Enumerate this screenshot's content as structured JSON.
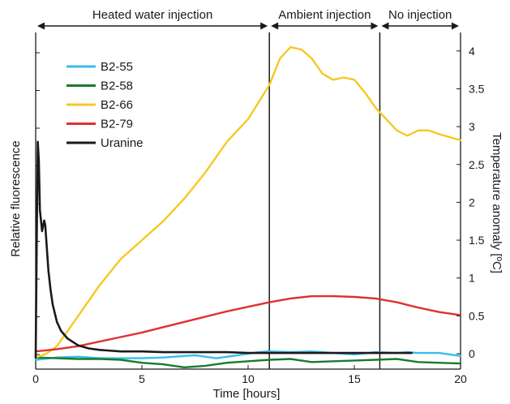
{
  "chart_data": {
    "type": "line",
    "xlabel": "Time [hours]",
    "ylabel_left": "Relative fluorescence",
    "ylabel_right": "Temperature anomaly [ºC]",
    "xlim": [
      0,
      20
    ],
    "xticks": [
      "0",
      "5",
      "10",
      "15",
      "20"
    ],
    "right_ylim": [
      -0.2,
      4.25
    ],
    "right_yticks": [
      "0",
      "0.5",
      "1",
      "1.5",
      "2",
      "2.5",
      "3",
      "3.5",
      "4"
    ],
    "grid": false,
    "legend_position": "top-left",
    "phases": [
      {
        "label": "Heated water injection",
        "start": 0,
        "end": 11
      },
      {
        "label": "Ambient injection",
        "start": 11,
        "end": 16.2
      },
      {
        "label": "No injection",
        "start": 16.2,
        "end": 20
      }
    ],
    "series": [
      {
        "name": "B2-55",
        "color": "#38bde8",
        "x": [
          0,
          1,
          2,
          3,
          4,
          5,
          6,
          7,
          7.5,
          8.5,
          9.5,
          10.5,
          11,
          12,
          13,
          14,
          15,
          16,
          17,
          17.5,
          18,
          19,
          20
        ],
        "y": [
          -0.08,
          -0.05,
          -0.04,
          -0.06,
          -0.06,
          -0.06,
          -0.05,
          -0.03,
          -0.02,
          -0.06,
          -0.02,
          0.02,
          0.03,
          0.02,
          0.03,
          0.01,
          -0.01,
          0.02,
          0.01,
          0.02,
          0.01,
          0.01,
          -0.03
        ]
      },
      {
        "name": "B2-58",
        "color": "#1a7a2e",
        "x": [
          0,
          1,
          2,
          3,
          4,
          5,
          6,
          7,
          8,
          9,
          10,
          11,
          12,
          13,
          14,
          15,
          16,
          17,
          18,
          19,
          20
        ],
        "y": [
          -0.05,
          -0.06,
          -0.07,
          -0.07,
          -0.08,
          -0.12,
          -0.14,
          -0.18,
          -0.16,
          -0.12,
          -0.1,
          -0.08,
          -0.07,
          -0.11,
          -0.1,
          -0.09,
          -0.08,
          -0.07,
          -0.11,
          -0.12,
          -0.13
        ]
      },
      {
        "name": "B2-66",
        "color": "#f5c921",
        "x": [
          0,
          0.5,
          1,
          2,
          3,
          4,
          5,
          6,
          7,
          8,
          9,
          10,
          11,
          11.5,
          12,
          12.5,
          13,
          13.5,
          14,
          14.5,
          15,
          15.5,
          16,
          16.5,
          17,
          17.5,
          18,
          18.5,
          19,
          20
        ],
        "y": [
          -0.05,
          0,
          0.1,
          0.5,
          0.9,
          1.25,
          1.5,
          1.75,
          2.05,
          2.4,
          2.8,
          3.1,
          3.55,
          3.9,
          4.05,
          4.02,
          3.9,
          3.7,
          3.62,
          3.65,
          3.62,
          3.45,
          3.25,
          3.1,
          2.95,
          2.88,
          2.95,
          2.95,
          2.9,
          2.82
        ]
      },
      {
        "name": "B2-79",
        "color": "#e03030",
        "x": [
          0,
          1,
          2,
          3,
          4,
          5,
          6,
          7,
          8,
          9,
          10,
          11,
          12,
          13,
          14,
          15,
          16,
          17,
          18,
          19,
          20
        ],
        "y": [
          0.03,
          0.06,
          0.1,
          0.16,
          0.22,
          0.28,
          0.35,
          0.42,
          0.49,
          0.56,
          0.62,
          0.68,
          0.73,
          0.76,
          0.76,
          0.75,
          0.73,
          0.68,
          0.61,
          0.55,
          0.51
        ]
      },
      {
        "name": "Uranine",
        "color": "#1a1a1a",
        "x": [
          0,
          0.05,
          0.1,
          0.15,
          0.2,
          0.3,
          0.4,
          0.45,
          0.5,
          0.6,
          0.7,
          0.8,
          1,
          1.2,
          1.5,
          2,
          2.5,
          3,
          4,
          5,
          6,
          7,
          8,
          9,
          10,
          11,
          12,
          13,
          14,
          15,
          16,
          17,
          17.7
        ],
        "y": [
          -0.05,
          1.5,
          2.8,
          2.55,
          1.9,
          1.62,
          1.76,
          1.7,
          1.5,
          1.1,
          0.85,
          0.65,
          0.42,
          0.3,
          0.2,
          0.11,
          0.07,
          0.05,
          0.03,
          0.03,
          0.02,
          0.02,
          0.02,
          0.02,
          0.01,
          0.01,
          0.01,
          0.01,
          0.01,
          0.01,
          0.01,
          0.01,
          0.01
        ]
      }
    ]
  }
}
